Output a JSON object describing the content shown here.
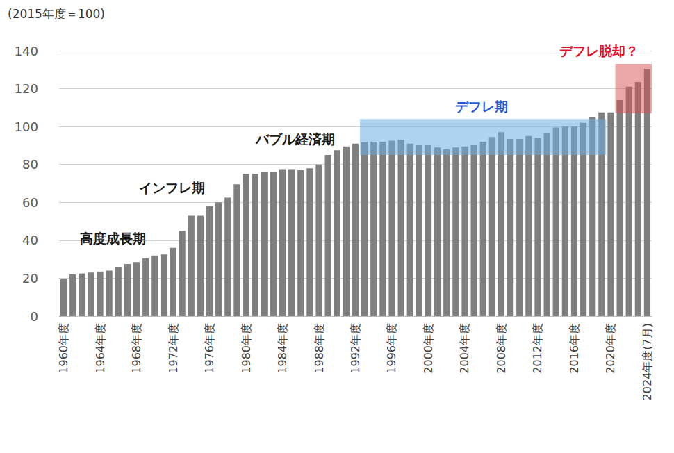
{
  "chart_data": {
    "type": "bar",
    "y_label": "(2015年度＝100)",
    "categories": [
      "1960年度",
      null,
      null,
      null,
      "1964年度",
      null,
      null,
      null,
      "1968年度",
      null,
      null,
      null,
      "1972年度",
      null,
      null,
      null,
      "1976年度",
      null,
      null,
      null,
      "1980年度",
      null,
      null,
      null,
      "1984年度",
      null,
      null,
      null,
      "1988年度",
      null,
      null,
      null,
      "1992年度",
      null,
      null,
      null,
      "1996年度",
      null,
      null,
      null,
      "2000年度",
      null,
      null,
      null,
      "2004年度",
      null,
      null,
      null,
      "2008年度",
      null,
      null,
      null,
      "2012年度",
      null,
      null,
      null,
      "2016年度",
      null,
      null,
      null,
      "2020年度",
      null,
      null,
      null,
      "2024年度(7月)"
    ],
    "values": [
      19.5,
      22,
      22.5,
      23,
      23.5,
      24,
      26,
      27.5,
      28.5,
      30.5,
      32,
      32.5,
      36,
      45,
      53,
      53,
      58,
      60,
      62.5,
      69.5,
      75,
      75,
      76,
      76,
      77.5,
      77.5,
      77,
      78,
      80,
      85,
      87.5,
      89.5,
      91,
      92,
      92,
      92,
      92.5,
      93,
      91,
      90.5,
      90.5,
      89,
      88,
      89,
      89.5,
      90.5,
      92,
      94.5,
      97,
      93.5,
      93.5,
      95,
      94,
      96.5,
      99.5,
      100,
      100,
      102,
      105,
      107.5,
      107.5,
      114,
      121,
      123.5,
      130.5
    ],
    "color": "#7f7f7f",
    "ylim": [
      0,
      140
    ],
    "yticks": [
      0,
      20,
      40,
      60,
      80,
      100,
      120,
      140
    ],
    "grid": true,
    "annotations": [
      {
        "text": "高度成長期",
        "color": "#1a1a1a"
      },
      {
        "text": "インフレ期",
        "color": "#1a1a1a"
      },
      {
        "text": "バブル経済期",
        "color": "#1a1a1a"
      },
      {
        "text": "デフレ期",
        "color": "#2a5bd7",
        "span": [
          1993,
          2019
        ],
        "y_range": [
          85,
          104
        ]
      },
      {
        "text": "デフレ脱却？",
        "color": "#e0102b",
        "span": [
          2021,
          2024
        ],
        "y_range": [
          107,
          133
        ]
      }
    ]
  }
}
